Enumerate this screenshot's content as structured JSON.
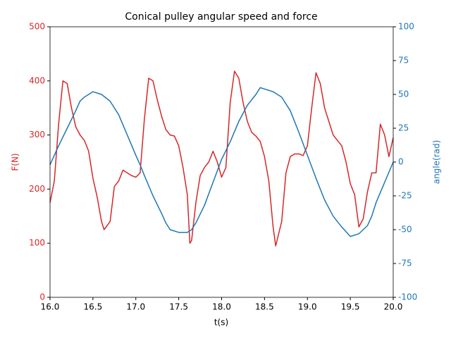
{
  "chart_data": {
    "type": "line",
    "title": "Conical pulley angular speed and force",
    "xlabel": "t(s)",
    "ylabel": "F(N)",
    "y2label": "angle(rad)",
    "xlim": [
      16,
      20
    ],
    "xticks": [
      {
        "value": 16,
        "label": "16.0"
      },
      {
        "value": 16.5,
        "label": "16.5"
      },
      {
        "value": 17,
        "label": "17.0"
      },
      {
        "value": 17.5,
        "label": "17.5"
      },
      {
        "value": 18,
        "label": "18.0"
      },
      {
        "value": 18.5,
        "label": "18.5"
      },
      {
        "value": 19,
        "label": "19.0"
      },
      {
        "value": 19.5,
        "label": "19.5"
      },
      {
        "value": 20,
        "label": "20.0"
      }
    ],
    "ylim": [
      0,
      500
    ],
    "yticks": [
      0,
      100,
      200,
      300,
      400,
      500
    ],
    "ycolor": "#d62728",
    "y2lim": [
      -100,
      100
    ],
    "y2ticks": [
      -100,
      -75,
      -50,
      -25,
      0,
      25,
      50,
      75,
      100
    ],
    "y2color": "#1f77b4",
    "series": [
      {
        "color": "#d62728",
        "x": [
          16.0,
          16.05,
          16.1,
          16.15,
          16.2,
          16.25,
          16.3,
          16.35,
          16.4,
          16.45,
          16.5,
          16.55,
          16.6,
          16.63,
          16.7,
          16.75,
          16.8,
          16.85,
          16.9,
          16.95,
          17.0,
          17.05,
          17.1,
          17.15,
          17.2,
          17.25,
          17.3,
          17.35,
          17.4,
          17.45,
          17.5,
          17.55,
          17.6,
          17.63,
          17.65,
          17.7,
          17.75,
          17.8,
          17.85,
          17.9,
          17.95,
          18.0,
          18.05,
          18.1,
          18.15,
          18.2,
          18.25,
          18.3,
          18.35,
          18.4,
          18.45,
          18.5,
          18.55,
          18.6,
          18.63,
          18.7,
          18.75,
          18.8,
          18.85,
          18.9,
          18.95,
          19.0,
          19.05,
          19.1,
          19.15,
          19.2,
          19.25,
          19.3,
          19.35,
          19.4,
          19.45,
          19.5,
          19.55,
          19.6,
          19.65,
          19.7,
          19.75,
          19.8,
          19.85,
          19.9,
          19.95,
          20.0
        ],
        "values": [
          175,
          215,
          320,
          400,
          395,
          350,
          315,
          300,
          290,
          270,
          220,
          185,
          140,
          125,
          140,
          205,
          215,
          235,
          230,
          225,
          222,
          230,
          330,
          405,
          400,
          365,
          335,
          310,
          300,
          298,
          280,
          240,
          190,
          100,
          105,
          175,
          225,
          240,
          250,
          270,
          250,
          222,
          240,
          360,
          418,
          405,
          360,
          325,
          305,
          298,
          288,
          260,
          215,
          130,
          95,
          140,
          230,
          260,
          265,
          265,
          262,
          280,
          350,
          415,
          395,
          350,
          325,
          300,
          290,
          280,
          250,
          210,
          190,
          130,
          145,
          195,
          230,
          230,
          320,
          300,
          260,
          295
        ]
      },
      {
        "color": "#1f77b4",
        "axis": "y2",
        "x": [
          16.0,
          16.1,
          16.2,
          16.3,
          16.35,
          16.4,
          16.5,
          16.6,
          16.7,
          16.8,
          16.9,
          17.0,
          17.05,
          17.1,
          17.2,
          17.3,
          17.35,
          17.4,
          17.5,
          17.6,
          17.65,
          17.7,
          17.8,
          17.9,
          18.0,
          18.1,
          18.2,
          18.3,
          18.4,
          18.45,
          18.5,
          18.6,
          18.7,
          18.8,
          18.9,
          19.0,
          19.1,
          19.2,
          19.3,
          19.4,
          19.5,
          19.6,
          19.7,
          19.75,
          19.8,
          19.9,
          20.0
        ],
        "values": [
          -2,
          12,
          25,
          38,
          45,
          48,
          52,
          50,
          45,
          35,
          20,
          5,
          -2,
          -10,
          -25,
          -38,
          -45,
          -50,
          -52,
          -52,
          -50,
          -45,
          -32,
          -15,
          2,
          15,
          30,
          42,
          50,
          55,
          54,
          52,
          48,
          38,
          22,
          5,
          -12,
          -28,
          -40,
          -48,
          -55,
          -53,
          -47,
          -40,
          -30,
          -15,
          0
        ]
      }
    ]
  }
}
